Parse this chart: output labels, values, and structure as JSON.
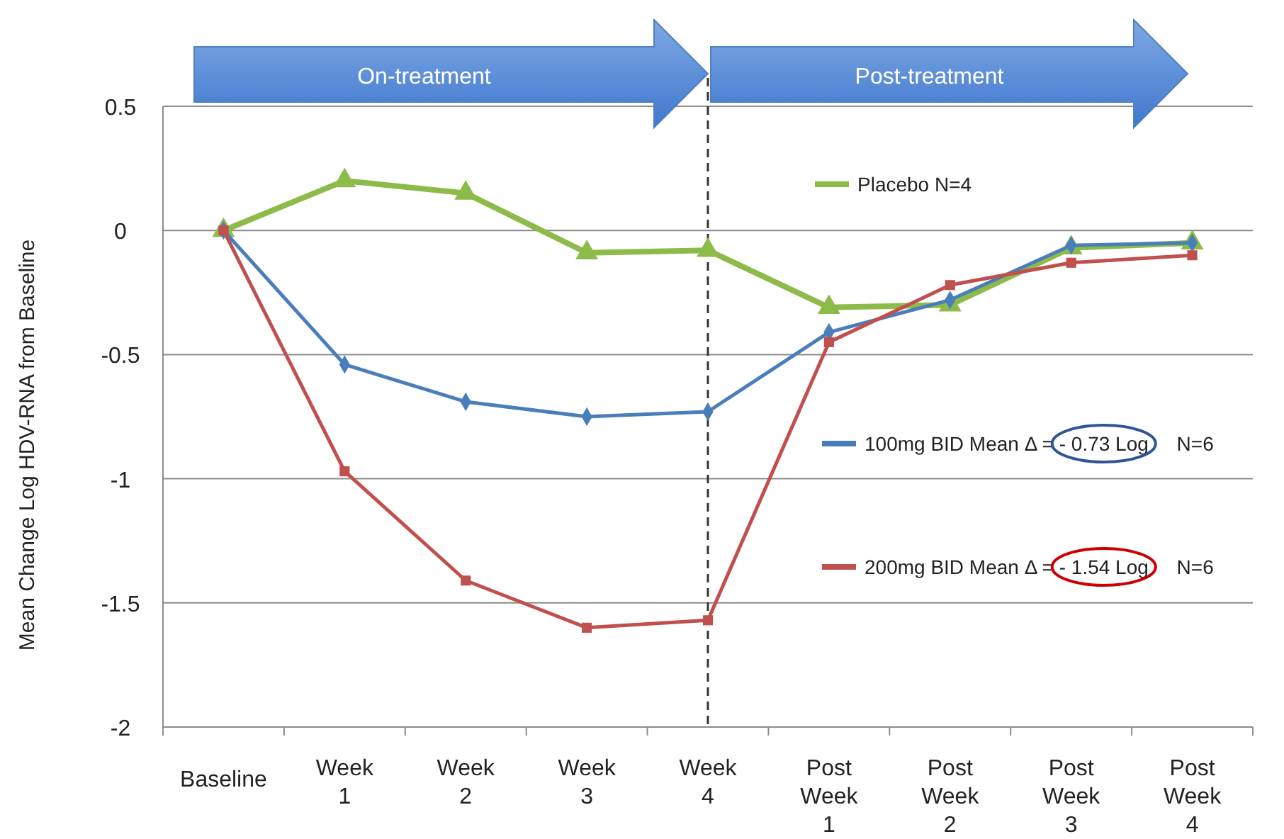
{
  "chart_data": {
    "type": "line",
    "ylabel": "Mean Change Log HDV-RNA from Baseline",
    "categories": [
      "Baseline",
      "Week 1",
      "Week 2",
      "Week 3",
      "Week 4",
      "Post Week 1",
      "Post Week 2",
      "Post Week 3",
      "Post Week 4"
    ],
    "ylim": [
      -2,
      0.5
    ],
    "yticks": [
      {
        "value": -2,
        "label": "-2"
      },
      {
        "value": -1.5,
        "label": "-1.5"
      },
      {
        "value": -1,
        "label": "-1"
      },
      {
        "value": -0.5,
        "label": "-0.5"
      },
      0,
      0.5
    ],
    "grid": "y",
    "legend": "right",
    "line_style": "solid",
    "annotations": [
      "On-treatment",
      "Post-treatment"
    ],
    "ref_lines": [
      {
        "axis": "x",
        "value": "Week 4",
        "color": "#333333",
        "line_style": "dashed"
      }
    ],
    "series": [
      {
        "name": "Placebo N=4",
        "color": "#8cbb4a",
        "marker": "triangle",
        "values": [
          0,
          0.2,
          0.15,
          -0.09,
          -0.08,
          -0.31,
          -0.3,
          -0.07,
          -0.05
        ]
      },
      {
        "name": "100mg BID Mean Δ = - 0.73 Log N=6",
        "color": "#4a7ebb",
        "marker": "diamond",
        "values": [
          0,
          -0.54,
          -0.69,
          -0.75,
          -0.73,
          -0.41,
          -0.28,
          -0.06,
          -0.05
        ]
      },
      {
        "name": "200mg BID Mean Δ = - 1.54 Log N=6",
        "color": "#c0504d",
        "marker": "square",
        "values": [
          0,
          -0.97,
          -1.41,
          -1.6,
          -1.57,
          -0.45,
          -0.22,
          -0.13,
          -0.1
        ]
      }
    ]
  }
}
